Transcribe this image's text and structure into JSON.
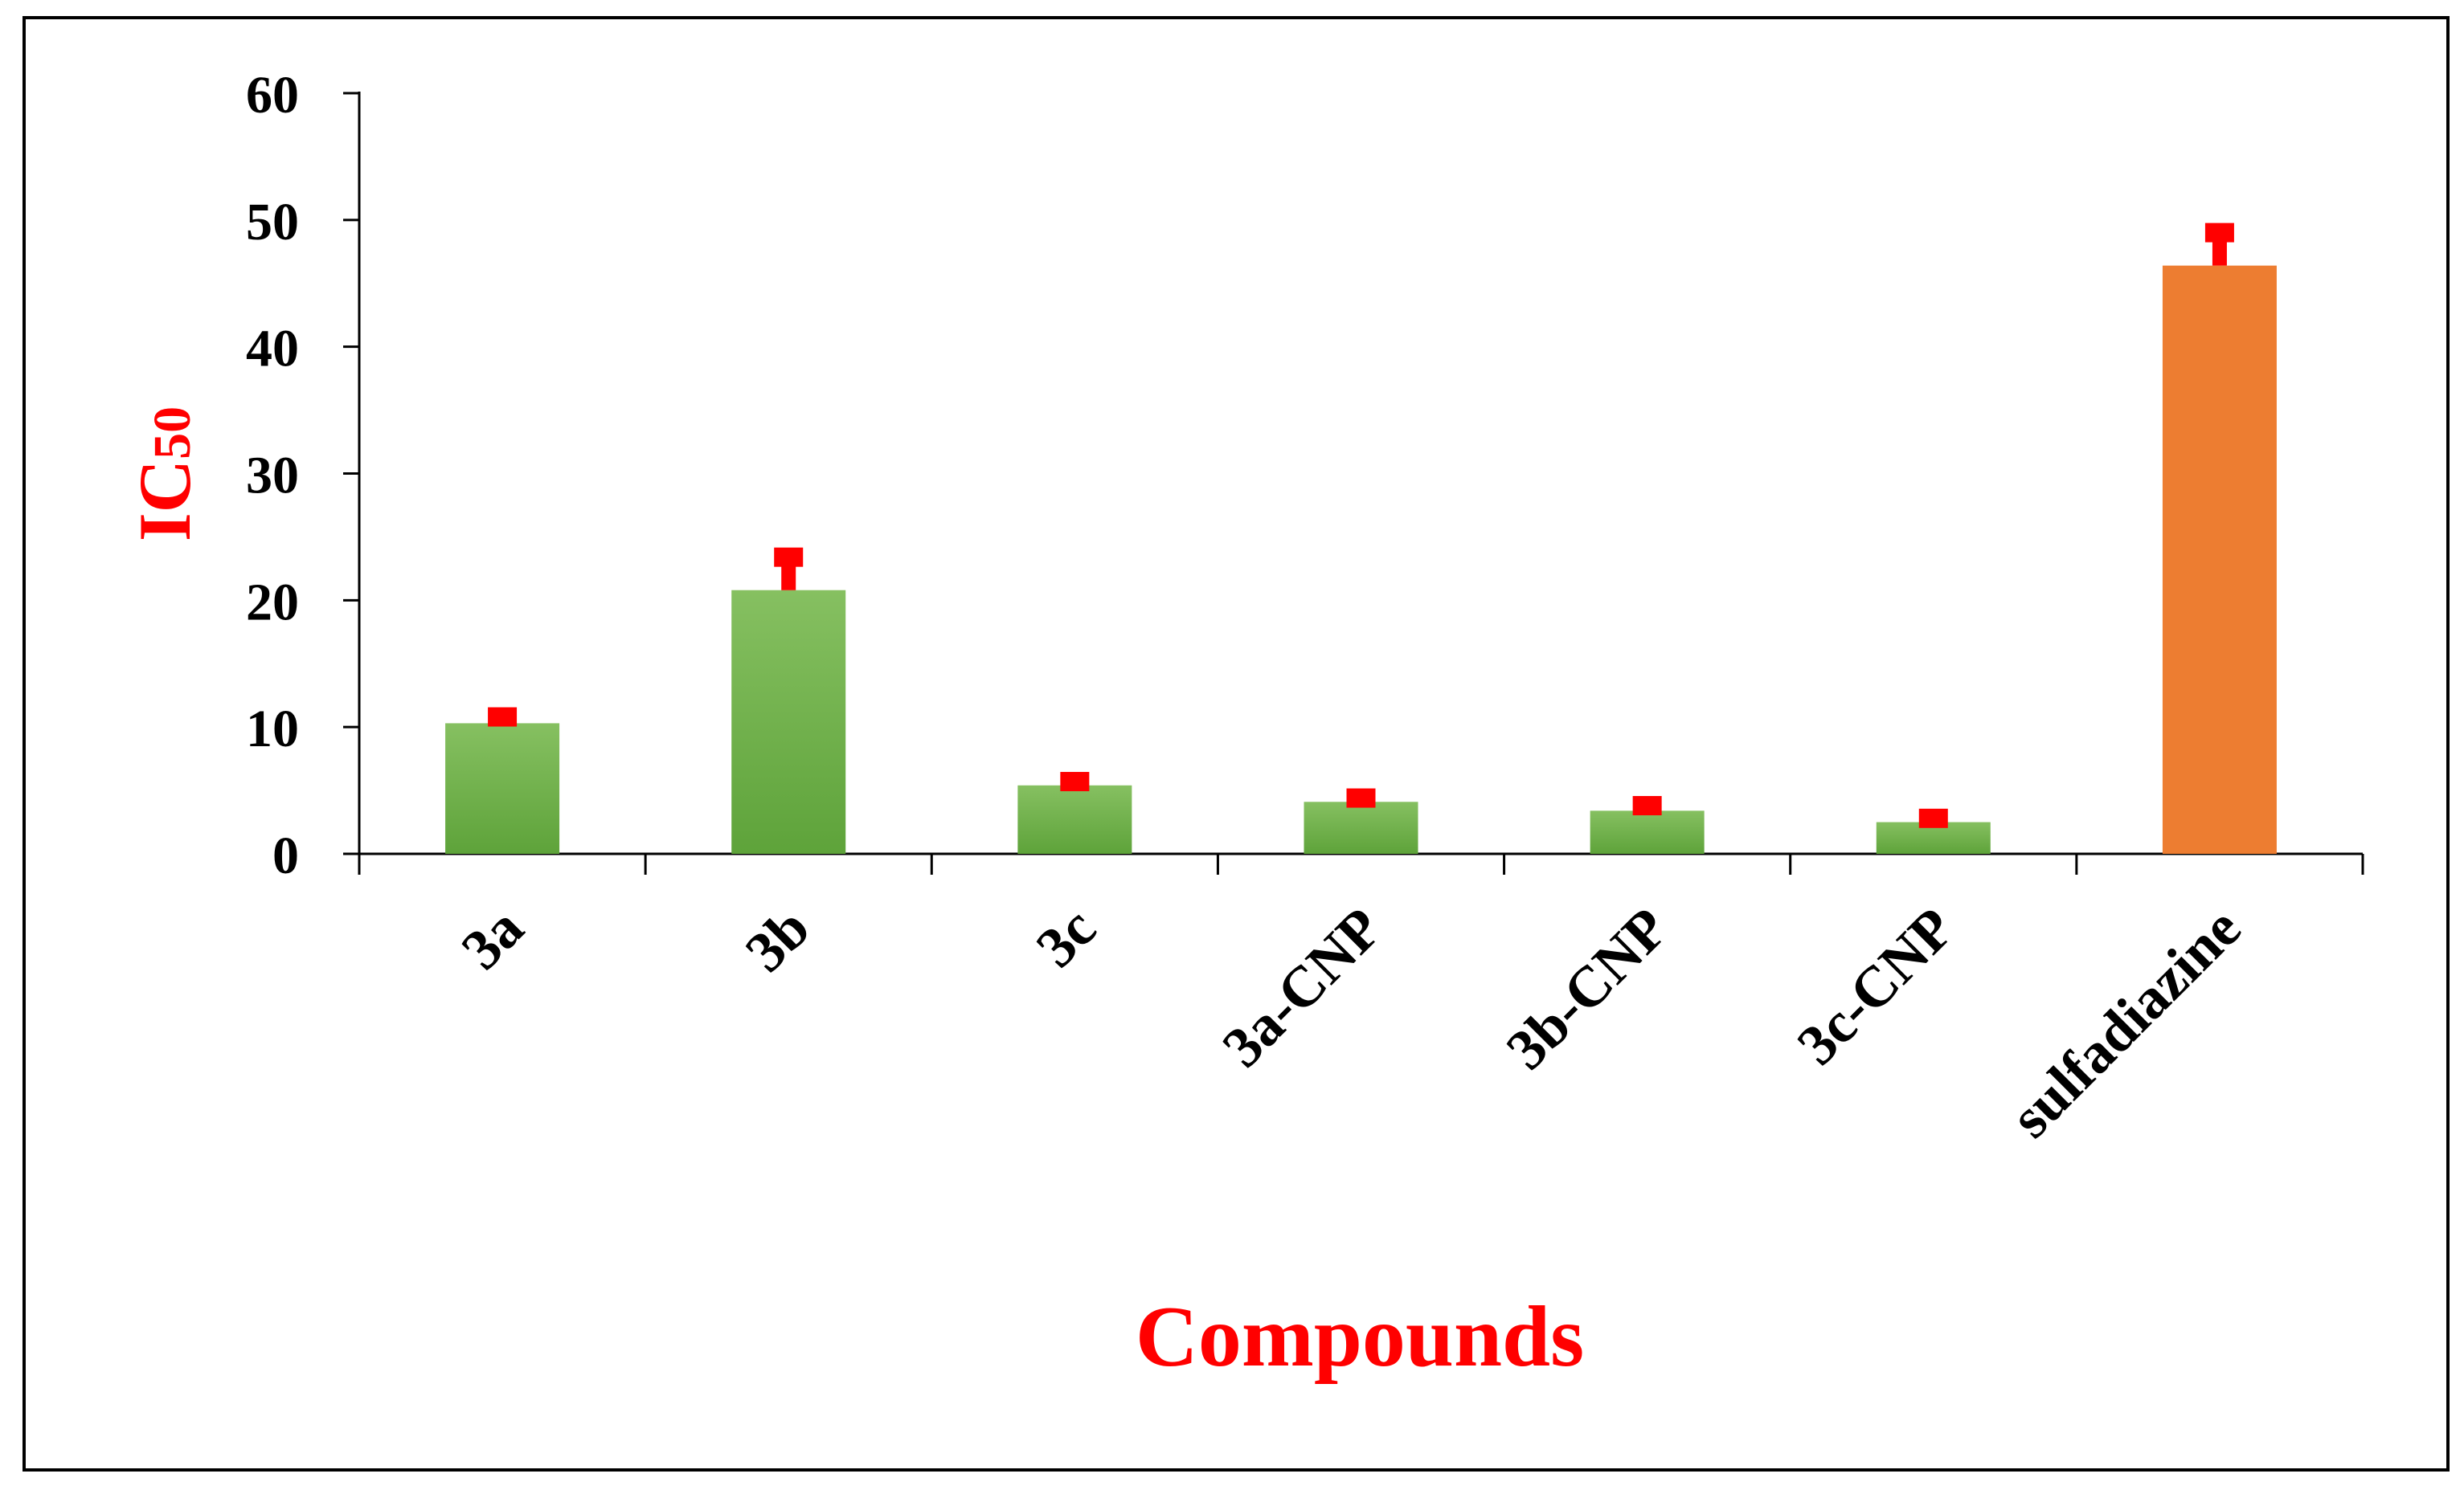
{
  "chart_data": {
    "type": "bar",
    "categories": [
      "3a",
      "3b",
      "3c",
      "3a-CNP",
      "3b-CNP",
      "3c-CNP",
      "sulfadiazine"
    ],
    "values": [
      10.3,
      20.8,
      5.4,
      4.1,
      3.4,
      2.5,
      46.4
    ],
    "errors": [
      0.5,
      2.6,
      0.3,
      0.3,
      0.4,
      0.3,
      2.6
    ],
    "bar_colors": [
      "#70ad47",
      "#70ad47",
      "#70ad47",
      "#70ad47",
      "#70ad47",
      "#70ad47",
      "#ed7d31"
    ],
    "error_color": "#ff0000",
    "ylabel": "IC",
    "ylabel_sub": "50",
    "xlabel": "Compounds",
    "ylim": [
      0,
      60
    ],
    "yticks": [
      "0",
      "10",
      "20",
      "30",
      "40",
      "50",
      "60"
    ],
    "grid": false,
    "legend": "none",
    "label_color": "#ff0000"
  }
}
